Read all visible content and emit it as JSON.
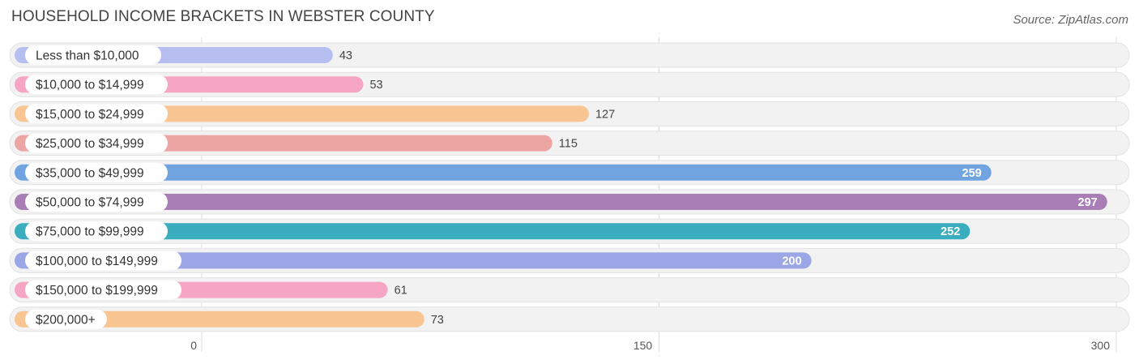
{
  "title": "HOUSEHOLD INCOME BRACKETS IN WEBSTER COUNTY",
  "source": "Source: ZipAtlas.com",
  "chart_data": {
    "type": "bar",
    "orientation": "horizontal",
    "title": "HOUSEHOLD INCOME BRACKETS IN WEBSTER COUNTY",
    "categories": [
      "Less than $10,000",
      "$10,000 to $14,999",
      "$15,000 to $24,999",
      "$25,000 to $34,999",
      "$35,000 to $49,999",
      "$50,000 to $74,999",
      "$75,000 to $99,999",
      "$100,000 to $149,999",
      "$150,000 to $199,999",
      "$200,000+"
    ],
    "values": [
      43,
      53,
      127,
      115,
      259,
      297,
      252,
      200,
      61,
      73
    ],
    "value_labels": [
      "43",
      "53",
      "127",
      "115",
      "259",
      "297",
      "252",
      "200",
      "61",
      "73"
    ],
    "colors": [
      "#b6bff0",
      "#f6a6c3",
      "#f9c592",
      "#eda5a3",
      "#6fa4e0",
      "#a97db5",
      "#3aadbf",
      "#9ba6e6",
      "#f6a6c3",
      "#f9c592"
    ],
    "xlim": [
      0,
      300
    ],
    "x_ticks": [
      0,
      150,
      300
    ],
    "x_tick_labels": [
      "0",
      "150",
      "300"
    ],
    "grid": true
  }
}
